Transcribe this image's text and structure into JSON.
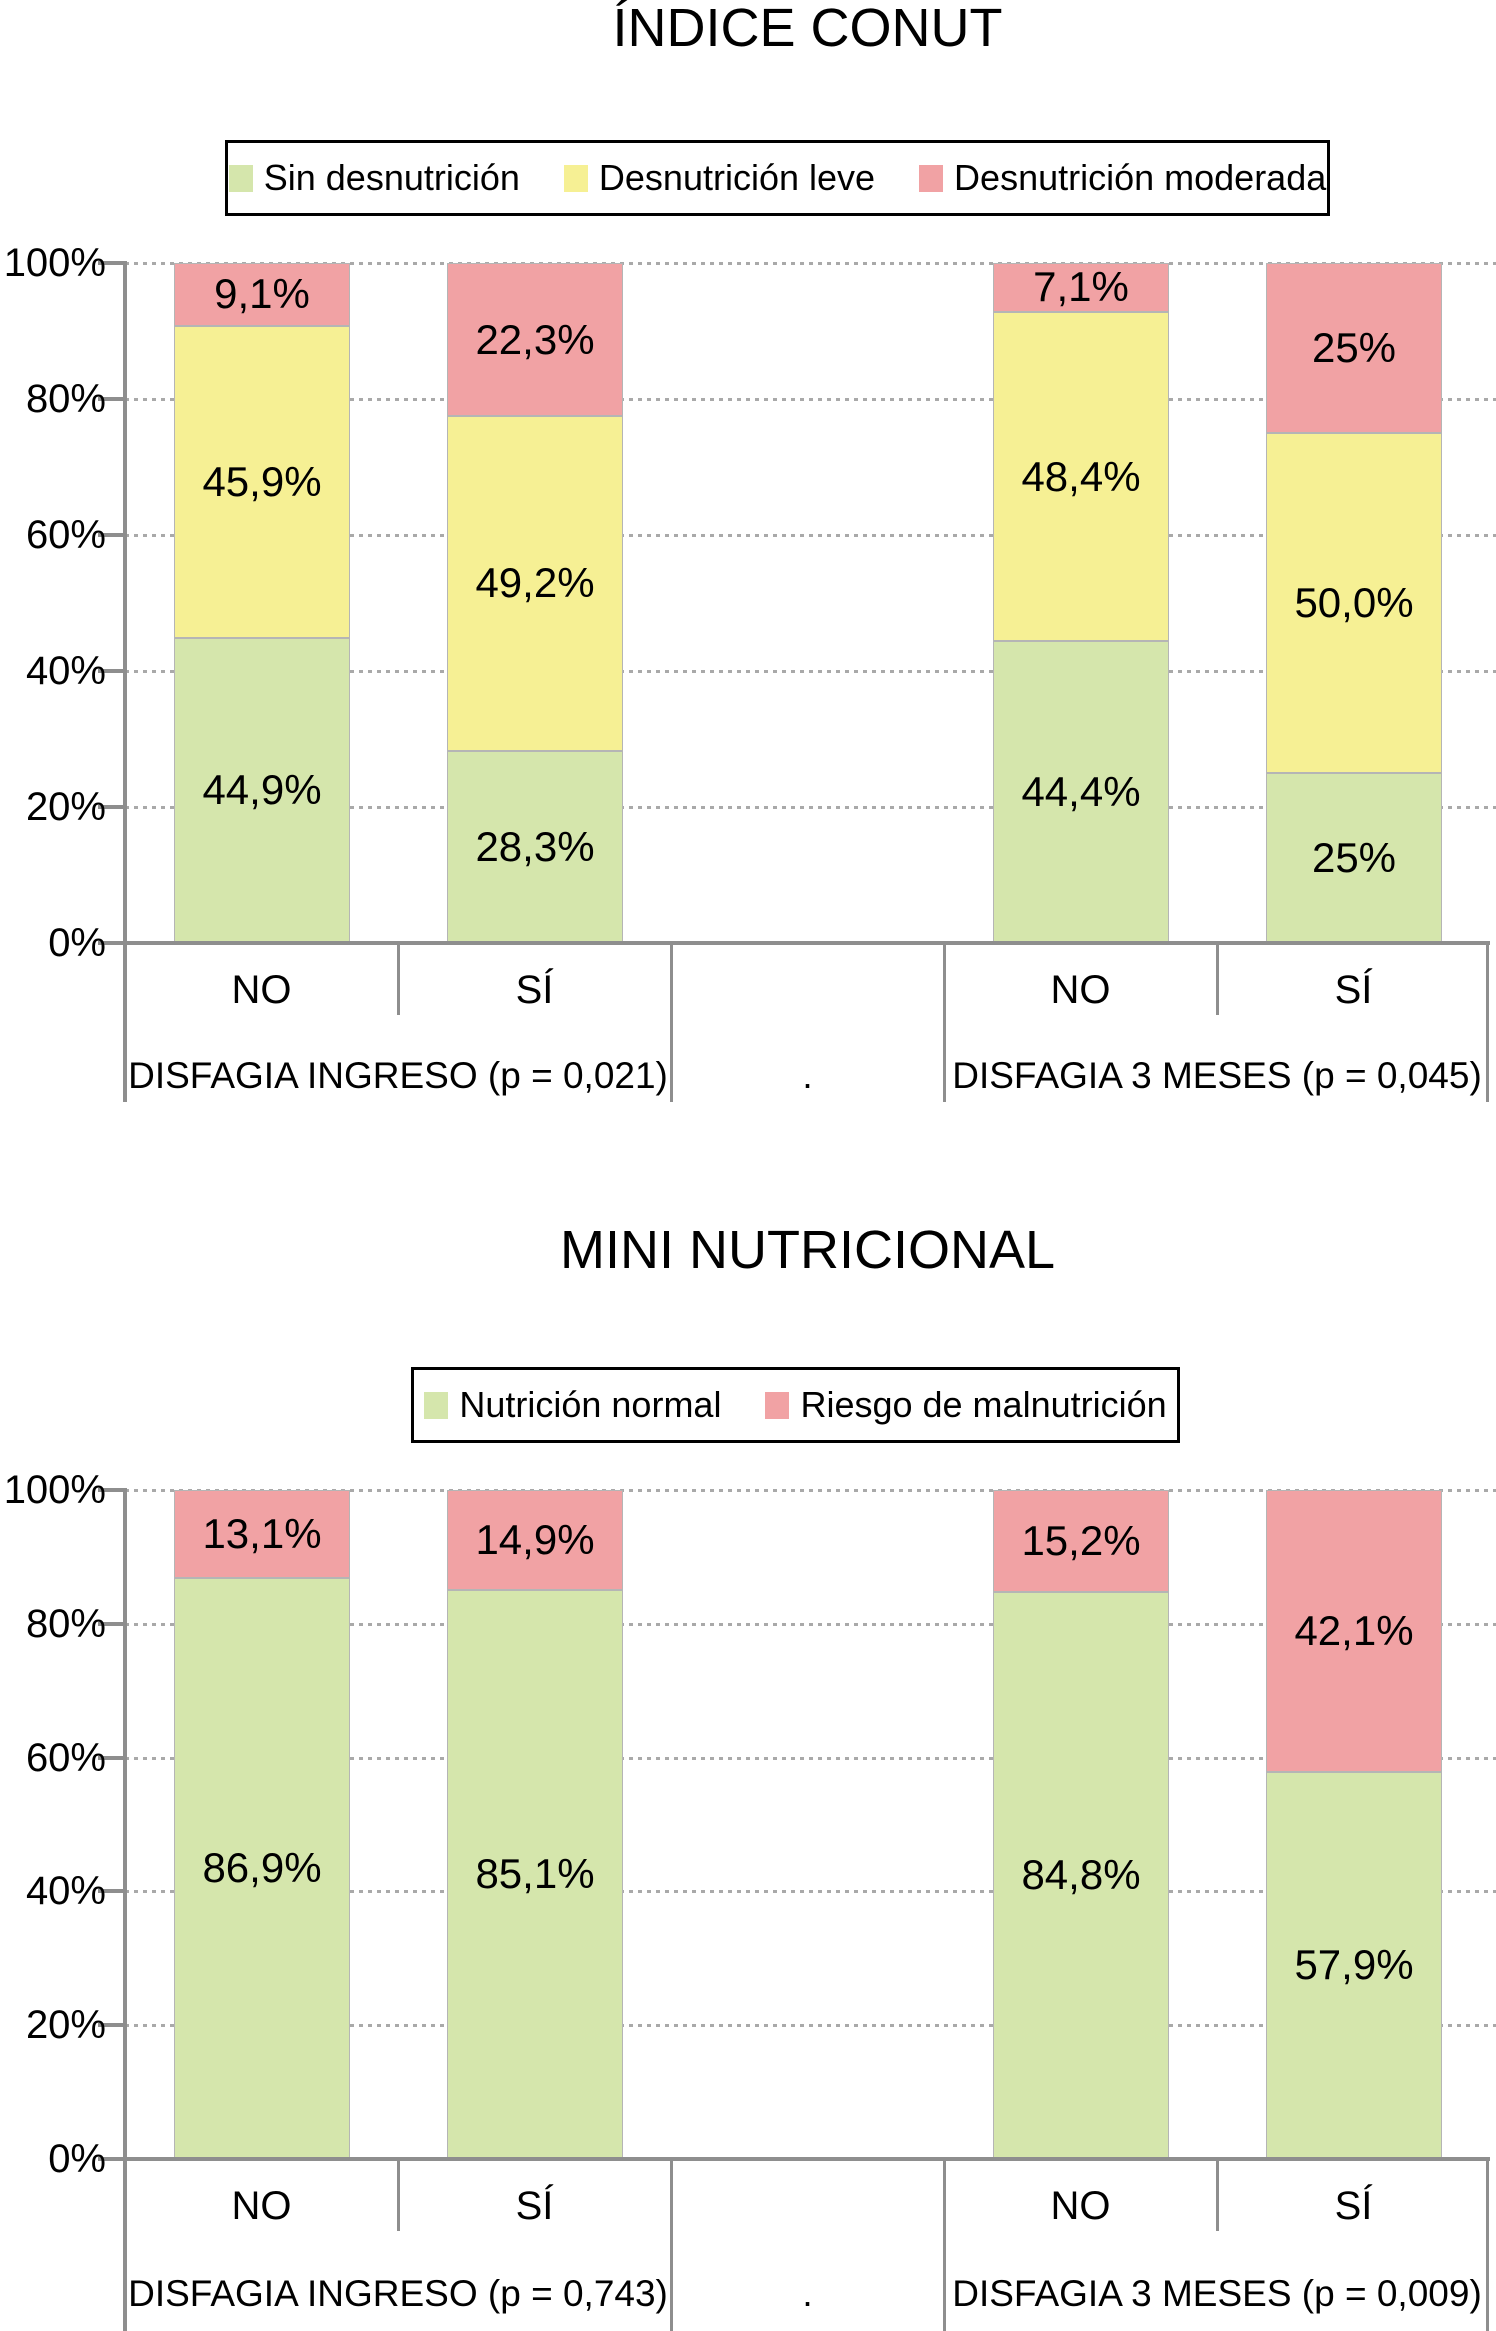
{
  "chart_data": [
    {
      "type": "bar",
      "stacked": true,
      "title": "ÍNDICE CONUT",
      "categories": [
        "NO",
        "SÍ",
        "NO",
        "SÍ"
      ],
      "group_labels": [
        "DISFAGIA INGRESO (p = 0,021)",
        ".",
        "DISFAGIA 3 MESES (p = 0,045)"
      ],
      "y_ticks": [
        "100%",
        "80%",
        "60%",
        "40%",
        "20%",
        "0%"
      ],
      "ylim": [
        0,
        100
      ],
      "grid": "horizontal-dotted",
      "legend_position": "top",
      "series": [
        {
          "name": "Sin desnutrición",
          "color": "#d5e6ac",
          "values": [
            44.9,
            28.3,
            44.4,
            25
          ],
          "labels": [
            "44,9%",
            "28,3%",
            "44,4%",
            "25%"
          ]
        },
        {
          "name": "Desnutrición leve",
          "color": "#f6f094",
          "values": [
            45.9,
            49.2,
            48.4,
            50
          ],
          "labels": [
            "45,9%",
            "49,2%",
            "48,4%",
            "50,0%"
          ]
        },
        {
          "name": "Desnutrición moderada",
          "color": "#f1a2a4",
          "values": [
            9.1,
            22.3,
            7.1,
            25
          ],
          "labels": [
            "9,1%",
            "22,3%",
            "7,1%",
            "25%"
          ]
        }
      ]
    },
    {
      "type": "bar",
      "stacked": true,
      "title": "MINI NUTRICIONAL",
      "categories": [
        "NO",
        "SÍ",
        "NO",
        "SÍ"
      ],
      "group_labels": [
        "DISFAGIA INGRESO (p = 0,743)",
        ".",
        "DISFAGIA 3 MESES (p = 0,009)"
      ],
      "y_ticks": [
        "100%",
        "80%",
        "60%",
        "40%",
        "20%",
        "0%"
      ],
      "ylim": [
        0,
        100
      ],
      "grid": "horizontal-dotted",
      "legend_position": "top",
      "series": [
        {
          "name": "Nutrición normal",
          "color": "#d5e6ac",
          "values": [
            86.9,
            85.1,
            84.8,
            57.9
          ],
          "labels": [
            "86,9%",
            "85,1%",
            "84,8%",
            "57,9%"
          ]
        },
        {
          "name": "Riesgo de malnutrición",
          "color": "#f1a2a4",
          "values": [
            13.1,
            14.9,
            15.2,
            42.1
          ],
          "labels": [
            "13,1%",
            "14,9%",
            "15,2%",
            "42,1%"
          ]
        }
      ]
    }
  ],
  "colors": {
    "green": "#d5e6ac",
    "yellow": "#f6f094",
    "pink": "#f1a2a4",
    "axis_gray": "#8e8e8e",
    "grid_gray": "#a9a9a9"
  }
}
